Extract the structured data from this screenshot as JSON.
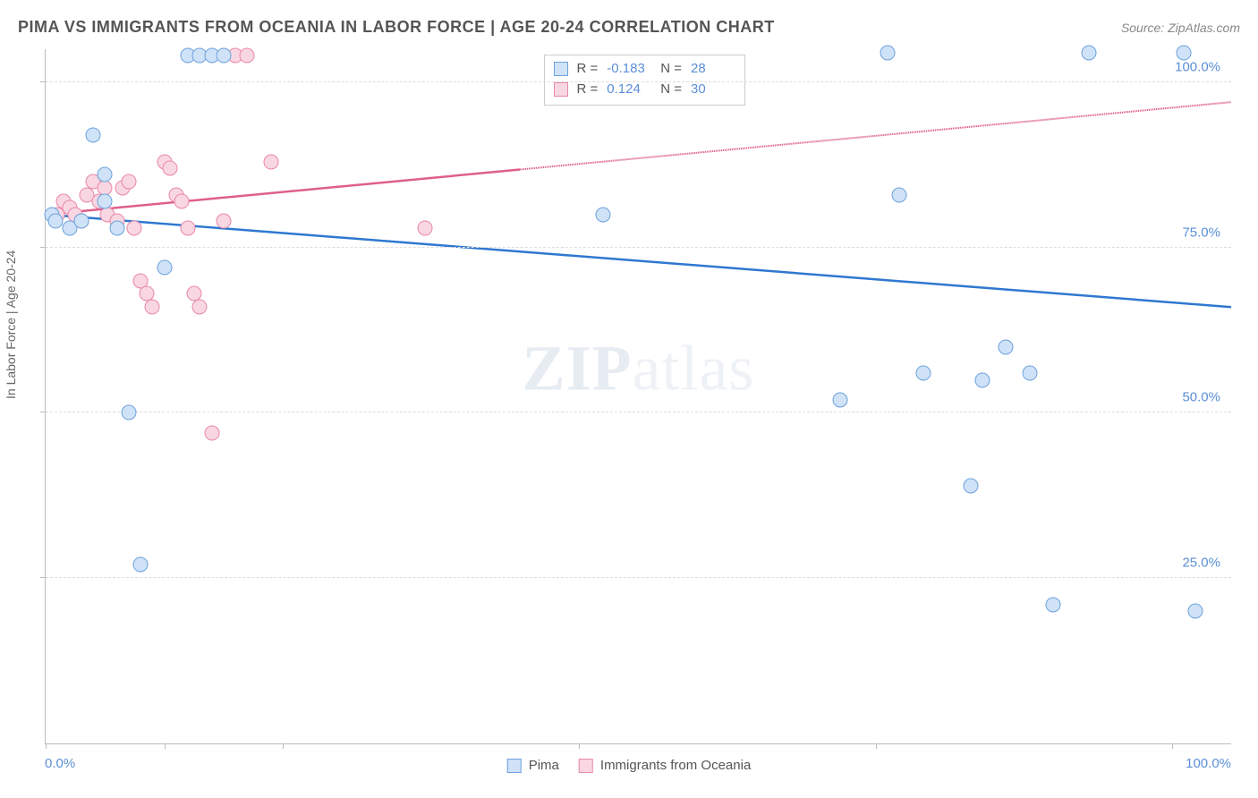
{
  "title": "PIMA VS IMMIGRANTS FROM OCEANIA IN LABOR FORCE | AGE 20-24 CORRELATION CHART",
  "source": "Source: ZipAtlas.com",
  "watermark_bold": "ZIP",
  "watermark_rest": "atlas",
  "y_axis_title": "In Labor Force | Age 20-24",
  "chart": {
    "type": "scatter",
    "xlim": [
      0,
      100
    ],
    "ylim": [
      0,
      105
    ],
    "x_tick_positions": [
      0,
      10,
      20,
      45,
      70,
      95
    ],
    "y_tick_positions": [
      25,
      50,
      75,
      100
    ],
    "y_tick_labels": [
      "25.0%",
      "50.0%",
      "75.0%",
      "100.0%"
    ],
    "x_zero_label": "0.0%",
    "x_hundred_label": "100.0%",
    "grid_color": "#dddddd",
    "background_color": "#ffffff",
    "axis_color": "#bbbbbb",
    "tick_label_color_blue": "#5b8fd6",
    "series": [
      {
        "name": "Pima",
        "marker_fill": "#cfe2f7",
        "marker_stroke": "#6da2dd",
        "line_color": "#2f78d0",
        "legend_swatch_fill": "#cfe2f7",
        "legend_swatch_stroke": "#6da2dd",
        "R_value": "-0.183",
        "N_value": "28",
        "trend": {
          "x1": 0,
          "y1": 80,
          "x2": 100,
          "y2": 66,
          "dashed_from_x": null
        },
        "points": [
          [
            0.5,
            80
          ],
          [
            0.8,
            79
          ],
          [
            2,
            78
          ],
          [
            3,
            79
          ],
          [
            4,
            92
          ],
          [
            5,
            86
          ],
          [
            5,
            82
          ],
          [
            6,
            78
          ],
          [
            7,
            50
          ],
          [
            8,
            27
          ],
          [
            10,
            72
          ],
          [
            12,
            104
          ],
          [
            13,
            104
          ],
          [
            14,
            104
          ],
          [
            15,
            104
          ],
          [
            47,
            80
          ],
          [
            67,
            52
          ],
          [
            71,
            104.5
          ],
          [
            72,
            83
          ],
          [
            74,
            56
          ],
          [
            78,
            39
          ],
          [
            79,
            55
          ],
          [
            81,
            60
          ],
          [
            83,
            56
          ],
          [
            85,
            21
          ],
          [
            88,
            104.5
          ],
          [
            96,
            104.5
          ],
          [
            97,
            20
          ]
        ]
      },
      {
        "name": "Immigrants from Oceania",
        "marker_fill": "#f9d7e2",
        "marker_stroke": "#e887a8",
        "line_color": "#de5f8b",
        "legend_swatch_fill": "#f9d7e2",
        "legend_swatch_stroke": "#e887a8",
        "R_value": "0.124",
        "N_value": "30",
        "trend": {
          "x1": 0,
          "y1": 80,
          "x2": 100,
          "y2": 97,
          "dashed_from_x": 40
        },
        "points": [
          [
            1,
            80
          ],
          [
            1.5,
            82
          ],
          [
            2,
            81
          ],
          [
            2.5,
            80
          ],
          [
            3,
            79
          ],
          [
            3.5,
            83
          ],
          [
            4,
            85
          ],
          [
            4.5,
            82
          ],
          [
            5,
            84
          ],
          [
            5.2,
            80
          ],
          [
            6,
            79
          ],
          [
            6.5,
            84
          ],
          [
            7,
            85
          ],
          [
            7.5,
            78
          ],
          [
            8,
            70
          ],
          [
            8.5,
            68
          ],
          [
            9,
            66
          ],
          [
            10,
            88
          ],
          [
            10.5,
            87
          ],
          [
            11,
            83
          ],
          [
            11.5,
            82
          ],
          [
            12,
            78
          ],
          [
            12.5,
            68
          ],
          [
            13,
            66
          ],
          [
            14,
            47
          ],
          [
            15,
            79
          ],
          [
            16,
            104
          ],
          [
            17,
            104
          ],
          [
            19,
            88
          ],
          [
            32,
            78
          ]
        ]
      }
    ],
    "r_legend_labels": {
      "R": "R =",
      "N": "N ="
    },
    "bottom_legend": [
      {
        "label": "Pima",
        "fill": "#cfe2f7",
        "stroke": "#6da2dd"
      },
      {
        "label": "Immigrants from Oceania",
        "fill": "#f9d7e2",
        "stroke": "#e887a8"
      }
    ]
  }
}
